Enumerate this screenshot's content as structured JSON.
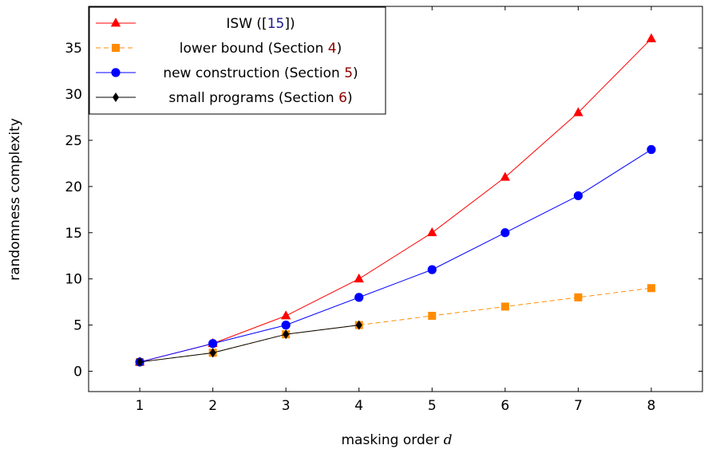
{
  "chart_data": {
    "type": "line",
    "title": "",
    "xlabel": "masking order",
    "xlabel_var": "d",
    "ylabel": "randomness complexity",
    "xlim": [
      0.3,
      8.7
    ],
    "ylim": [
      -2.2,
      39.5
    ],
    "xticks": [
      1,
      2,
      3,
      4,
      5,
      6,
      7,
      8
    ],
    "yticks": [
      0,
      5,
      10,
      15,
      20,
      25,
      30,
      35
    ],
    "grid": false,
    "legend_position": "top-left",
    "series": [
      {
        "name": "ISW ([15])",
        "name_parts": [
          "ISW ([",
          "15",
          "])"
        ],
        "color": "#ff0000",
        "marker": "triangle",
        "dash": "solid",
        "x": [
          1,
          2,
          3,
          4,
          5,
          6,
          7,
          8
        ],
        "y": [
          1,
          3,
          6,
          10,
          15,
          21,
          28,
          36
        ]
      },
      {
        "name": "lower bound (Section 4)",
        "name_parts": [
          "lower bound (Section ",
          "4",
          ")"
        ],
        "color": "#ff8c00",
        "marker": "square",
        "dash": "dashed",
        "x": [
          1,
          2,
          3,
          4,
          5,
          6,
          7,
          8
        ],
        "y": [
          1,
          2,
          4,
          5,
          6,
          7,
          8,
          9
        ]
      },
      {
        "name": "new construction (Section 5)",
        "name_parts": [
          "new construction (Section ",
          "5",
          ")"
        ],
        "color": "#0000ff",
        "marker": "circle",
        "dash": "solid",
        "x": [
          1,
          2,
          3,
          4,
          5,
          6,
          7,
          8
        ],
        "y": [
          1,
          3,
          5,
          8,
          11,
          15,
          19,
          24
        ]
      },
      {
        "name": "small programs (Section 6)",
        "name_parts": [
          "small programs (Section ",
          "6",
          ")"
        ],
        "color": "#000000",
        "marker": "diamond",
        "dash": "solid",
        "x": [
          1,
          2,
          3,
          4
        ],
        "y": [
          1,
          2,
          4,
          5
        ]
      }
    ],
    "link_colors": {
      "citation": "#1a1a8c",
      "section_ref": "#8b0000"
    }
  }
}
